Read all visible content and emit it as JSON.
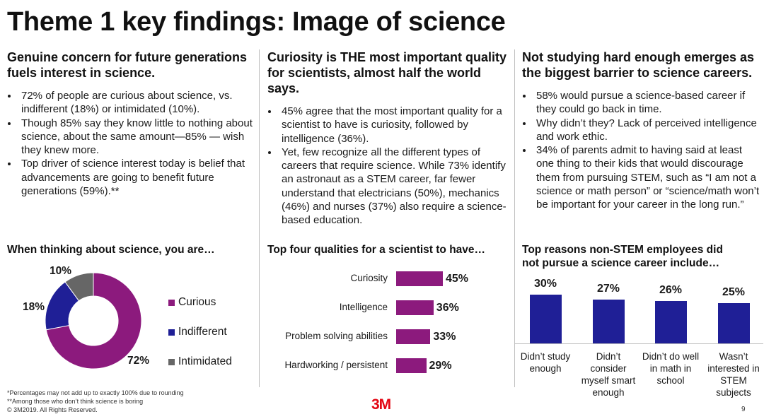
{
  "title": "Theme 1 key findings: Image of science",
  "columns": [
    {
      "heading": "Genuine concern for future generations fuels interest in science.",
      "bullets": [
        "72% of people are curious about science, vs. indifferent (18%) or intimidated (10%).",
        "Though 85% say they know little to nothing about science, about the same amount—85% — wish they knew more.",
        "Top driver of science interest today is belief that advancements are going to benefit future generations (59%).**"
      ]
    },
    {
      "heading": "Curiosity is THE most important quality for scientists, almost half the world says.",
      "bullets": [
        "45% agree that the most important quality for a scientist to have is curiosity, followed by intelligence (36%).",
        "Yet, few recognize all the different types of careers that require science. While 73% identify an astronaut as a STEM career,  far fewer understand that electricians (50%), mechanics (46%) and nurses (37%) also require a science-based education."
      ]
    },
    {
      "heading": "Not studying hard enough emerges as the biggest barrier to science careers.",
      "bullets": [
        "58% would pursue a science-based career if they could go back in time.",
        "Why didn’t they? Lack of perceived intelligence and work ethic.",
        "34% of parents admit to having said at least one thing to their kids that would discourage them from pursuing STEM, such as “I am not a science or math person” or  “science/math won’t be important for your career in the long run.”"
      ]
    }
  ],
  "chart_data": [
    {
      "type": "pie",
      "title": "When thinking about science, you are…",
      "categories": [
        "Curious",
        "Indifferent",
        "Intimidated"
      ],
      "values": [
        72,
        18,
        10
      ],
      "value_labels": [
        "72%",
        "18%",
        "10%"
      ],
      "colors": [
        "#8c1a7d",
        "#1f1f96",
        "#666666"
      ],
      "donut": true,
      "legend": "right"
    },
    {
      "type": "bar",
      "orientation": "horizontal",
      "title": "Top four qualities for a scientist to have…",
      "categories": [
        "Curiosity",
        "Intelligence",
        "Problem solving abilities",
        "Hardworking / persistent"
      ],
      "values": [
        45,
        36,
        33,
        29
      ],
      "value_labels": [
        "45%",
        "36%",
        "33%",
        "29%"
      ],
      "color": "#8c1a7d"
    },
    {
      "type": "bar",
      "orientation": "vertical",
      "title": "Top reasons non-STEM employees did not pursue a science career include…",
      "categories": [
        "Didn’t study enough",
        "Didn’t consider myself smart enough",
        "Didn’t do well in math in school",
        "Wasn’t interested in STEM subjects"
      ],
      "values": [
        30,
        27,
        26,
        25
      ],
      "value_labels": [
        "30%",
        "27%",
        "26%",
        "25%"
      ],
      "color": "#1f1f96"
    }
  ],
  "footnotes": [
    "*Percentages may not add up to exactly 100% due to rounding",
    "**Among those who don’t think science is boring",
    "© 3M2019.   All Rights Reserved."
  ],
  "logo_text": "3M",
  "page_number": "9"
}
